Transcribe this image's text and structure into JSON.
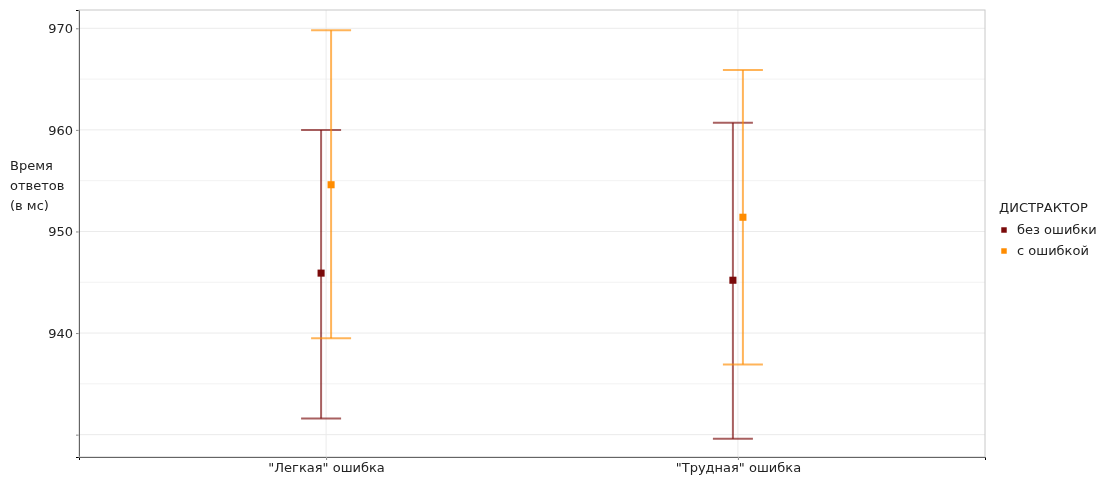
{
  "chart_data": {
    "type": "scatter",
    "ylabel": "Время ответов (в мс)",
    "legend_title": "ДИСТРАКТОР",
    "categories": [
      "\"Легкая\" ошибка",
      "\"Трудная\" ошибка"
    ],
    "series": [
      {
        "name": "без ошибки",
        "color": "#7a0a0a",
        "values": [
          945.9,
          945.2
        ],
        "errors": [
          [
            931.6,
            960.0
          ],
          [
            929.6,
            960.7
          ]
        ]
      },
      {
        "name": "с ошибкой",
        "color": "#ff8c00",
        "values": [
          954.6,
          951.4
        ],
        "errors": [
          [
            939.5,
            969.8
          ],
          [
            936.9,
            965.9
          ]
        ]
      }
    ],
    "ylim": [
      927.8,
      971.8
    ],
    "yticks": [
      {
        "value": 930,
        "label": null
      },
      940,
      950,
      960,
      970
    ],
    "grid": true,
    "legend": "right",
    "marker": "square"
  }
}
